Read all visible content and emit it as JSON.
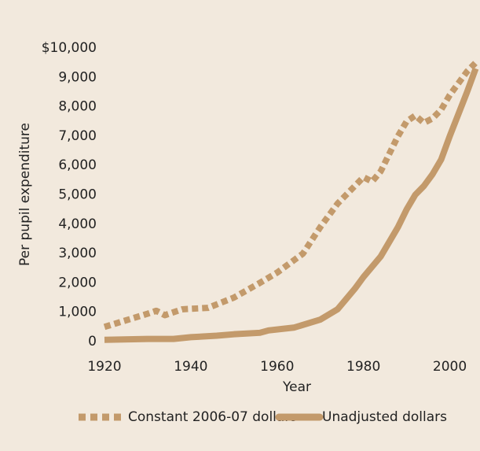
{
  "chart_data": {
    "type": "line",
    "xlabel": "Year",
    "ylabel": "Per pupil expenditure",
    "xlim": [
      1919,
      2007
    ],
    "xticks": [
      1920,
      1940,
      1960,
      1980,
      2000
    ],
    "ylim": [
      0,
      10000
    ],
    "yticks": [
      0,
      {
        "value": 1000,
        "label": "1,000"
      },
      {
        "value": 2000,
        "label": "2,000"
      },
      {
        "value": 3000,
        "label": "3,000"
      },
      {
        "value": 4000,
        "label": "4,000"
      },
      {
        "value": 5000,
        "label": "5,000"
      },
      {
        "value": 6000,
        "label": "6,000"
      },
      {
        "value": 7000,
        "label": "7,000"
      },
      {
        "value": 8000,
        "label": "8,000"
      },
      {
        "value": 9000,
        "label": "9,000"
      },
      {
        "value": 10000,
        "label": "$10,000"
      }
    ],
    "series": [
      {
        "name": "Constant 2006-07 dollars",
        "color": "#c39a6b",
        "dashed": true,
        "x": [
          1920,
          1930,
          1932,
          1934,
          1938,
          1944,
          1950,
          1956,
          1960,
          1966,
          1970,
          1974,
          1978,
          1980,
          1982,
          1984,
          1988,
          1990,
          1992,
          1994,
          1996,
          1998,
          2000,
          2004,
          2006
        ],
        "values": [
          500,
          950,
          1050,
          900,
          1100,
          1150,
          1500,
          2000,
          2350,
          3000,
          3900,
          4700,
          5300,
          5600,
          5450,
          5800,
          7000,
          7500,
          7700,
          7450,
          7600,
          7900,
          8400,
          9200,
          9500
        ]
      },
      {
        "name": "Unadjusted dollars",
        "color": "#c39a6b",
        "dashed": false,
        "x": [
          1920,
          1930,
          1936,
          1940,
          1946,
          1950,
          1956,
          1958,
          1964,
          1970,
          1974,
          1978,
          1980,
          1984,
          1988,
          1990,
          1992,
          1994,
          1996,
          1998,
          2000,
          2004,
          2006
        ],
        "values": [
          60,
          90,
          90,
          150,
          200,
          250,
          300,
          380,
          480,
          750,
          1100,
          1800,
          2200,
          2900,
          3900,
          4500,
          5000,
          5300,
          5700,
          6200,
          7000,
          8500,
          9300
        ]
      }
    ]
  }
}
